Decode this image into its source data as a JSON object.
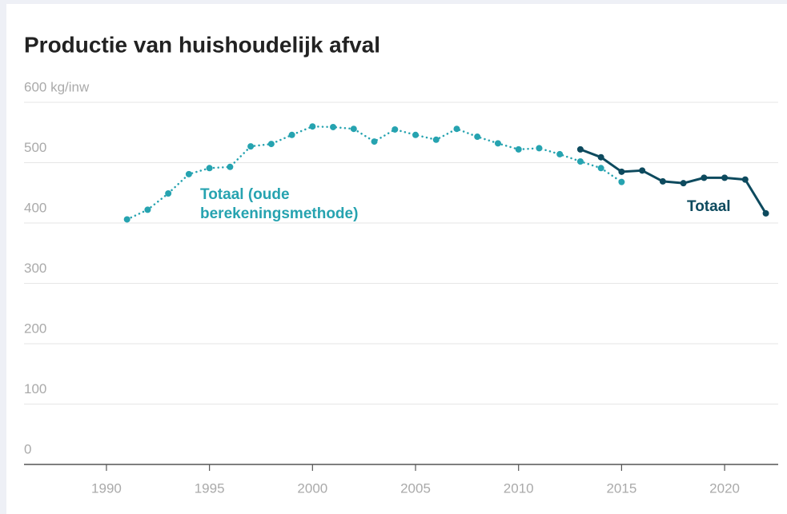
{
  "chart_data": {
    "type": "line",
    "title": "Productie van huishoudelijk afval",
    "xlim": [
      1986,
      2022.6
    ],
    "xticks": [
      1990,
      1995,
      2000,
      2005,
      2010,
      2015,
      2020
    ],
    "ylim": [
      0,
      600
    ],
    "yticks": [
      0,
      100,
      200,
      300,
      400,
      500,
      {
        "value": 600,
        "label": "600 kg/inw"
      }
    ],
    "grid": true,
    "series": [
      {
        "name": "Totaal (oude berekeningsmethode)",
        "color": "#26a3b0",
        "dashed": true,
        "x": [
          1991,
          1992,
          1993,
          1994,
          1995,
          1996,
          1997,
          1998,
          1999,
          2000,
          2001,
          2002,
          2003,
          2004,
          2005,
          2006,
          2007,
          2008,
          2009,
          2010,
          2011,
          2012,
          2013,
          2014,
          2015
        ],
        "values": [
          406,
          422,
          449,
          481,
          491,
          493,
          527,
          531,
          546,
          560,
          559,
          556,
          535,
          555,
          546,
          538,
          556,
          543,
          532,
          522,
          524,
          514,
          502,
          491,
          468
        ]
      },
      {
        "name": "Totaal",
        "color": "#0d4a5e",
        "dashed": false,
        "x": [
          2013,
          2014,
          2015,
          2016,
          2017,
          2018,
          2019,
          2020,
          2021,
          2022
        ],
        "values": [
          522,
          509,
          485,
          487,
          469,
          466,
          475,
          475,
          472,
          416
        ]
      }
    ]
  }
}
